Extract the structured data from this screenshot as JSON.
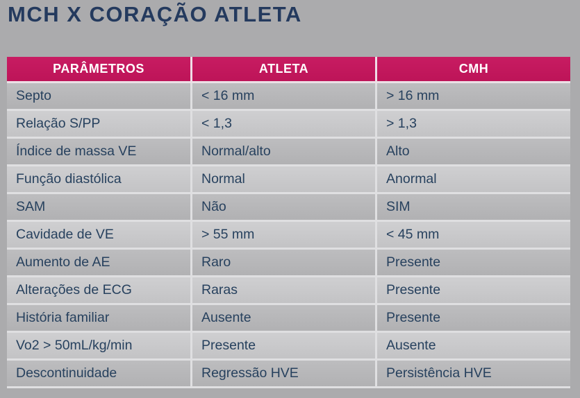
{
  "title": "MCH X CORAÇÃO ATLETA",
  "colors": {
    "background": "#ABABAD",
    "title_text": "#243A5E",
    "header_bg": "#C2165C",
    "header_text": "#FFFFFF",
    "cell_text": "#27415E",
    "row_dark": "#B7B7B9",
    "row_light": "#C9C9CB",
    "separator": "#DFDFE1"
  },
  "table": {
    "headers": [
      "PARÂMETROS",
      "ATLETA",
      "CMH"
    ],
    "rows": [
      [
        "Septo",
        "< 16 mm",
        "> 16 mm"
      ],
      [
        "Relação S/PP",
        "< 1,3",
        "> 1,3"
      ],
      [
        "Índice de massa VE",
        "Normal/alto",
        "Alto"
      ],
      [
        "Função diastólica",
        "Normal",
        "Anormal"
      ],
      [
        "SAM",
        "Não",
        "SIM"
      ],
      [
        "Cavidade de VE",
        "> 55 mm",
        "< 45 mm"
      ],
      [
        "Aumento de AE",
        "Raro",
        "Presente"
      ],
      [
        "Alterações de ECG",
        "Raras",
        "Presente"
      ],
      [
        "História familiar",
        "Ausente",
        "Presente"
      ],
      [
        "Vo2 > 50mL/kg/min",
        "Presente",
        "Ausente"
      ],
      [
        "Descontinuidade",
        "Regressão HVE",
        "Persistência HVE"
      ]
    ]
  }
}
